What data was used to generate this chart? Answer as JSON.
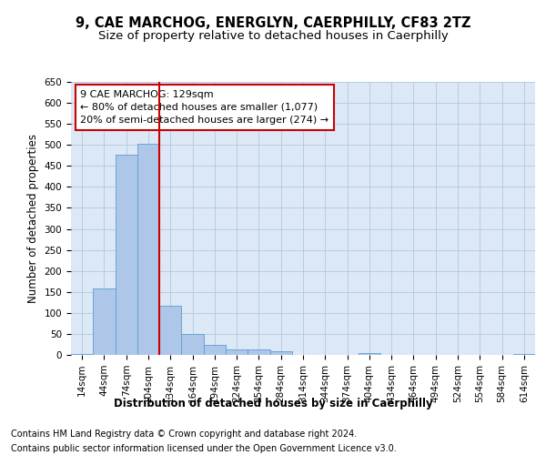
{
  "title1": "9, CAE MARCHOG, ENERGLYN, CAERPHILLY, CF83 2TZ",
  "title2": "Size of property relative to detached houses in Caerphilly",
  "xlabel": "Distribution of detached houses by size in Caerphilly",
  "ylabel": "Number of detached properties",
  "footnote1": "Contains HM Land Registry data © Crown copyright and database right 2024.",
  "footnote2": "Contains public sector information licensed under the Open Government Licence v3.0.",
  "categories": [
    "14sqm",
    "44sqm",
    "74sqm",
    "104sqm",
    "134sqm",
    "164sqm",
    "194sqm",
    "224sqm",
    "254sqm",
    "284sqm",
    "314sqm",
    "344sqm",
    "374sqm",
    "404sqm",
    "434sqm",
    "464sqm",
    "494sqm",
    "524sqm",
    "554sqm",
    "584sqm",
    "614sqm"
  ],
  "values": [
    3,
    158,
    477,
    503,
    118,
    49,
    23,
    12,
    12,
    8,
    0,
    0,
    0,
    5,
    0,
    0,
    0,
    0,
    0,
    0,
    3
  ],
  "bar_color": "#aec6e8",
  "bar_edge_color": "#5a9fd4",
  "vline_color": "#cc0000",
  "annotation_text": "9 CAE MARCHOG: 129sqm\n← 80% of detached houses are smaller (1,077)\n20% of semi-detached houses are larger (274) →",
  "annotation_box_color": "#ffffff",
  "annotation_box_edge": "#cc0000",
  "ylim": [
    0,
    650
  ],
  "yticks": [
    0,
    50,
    100,
    150,
    200,
    250,
    300,
    350,
    400,
    450,
    500,
    550,
    600,
    650
  ],
  "background_color": "#ffffff",
  "plot_bg_color": "#dce8f5",
  "grid_color": "#b0c8e0",
  "title_fontsize": 10.5,
  "subtitle_fontsize": 9.5,
  "axis_label_fontsize": 8.5,
  "tick_fontsize": 7.5,
  "footnote_fontsize": 7.0,
  "annotation_fontsize": 8.0
}
